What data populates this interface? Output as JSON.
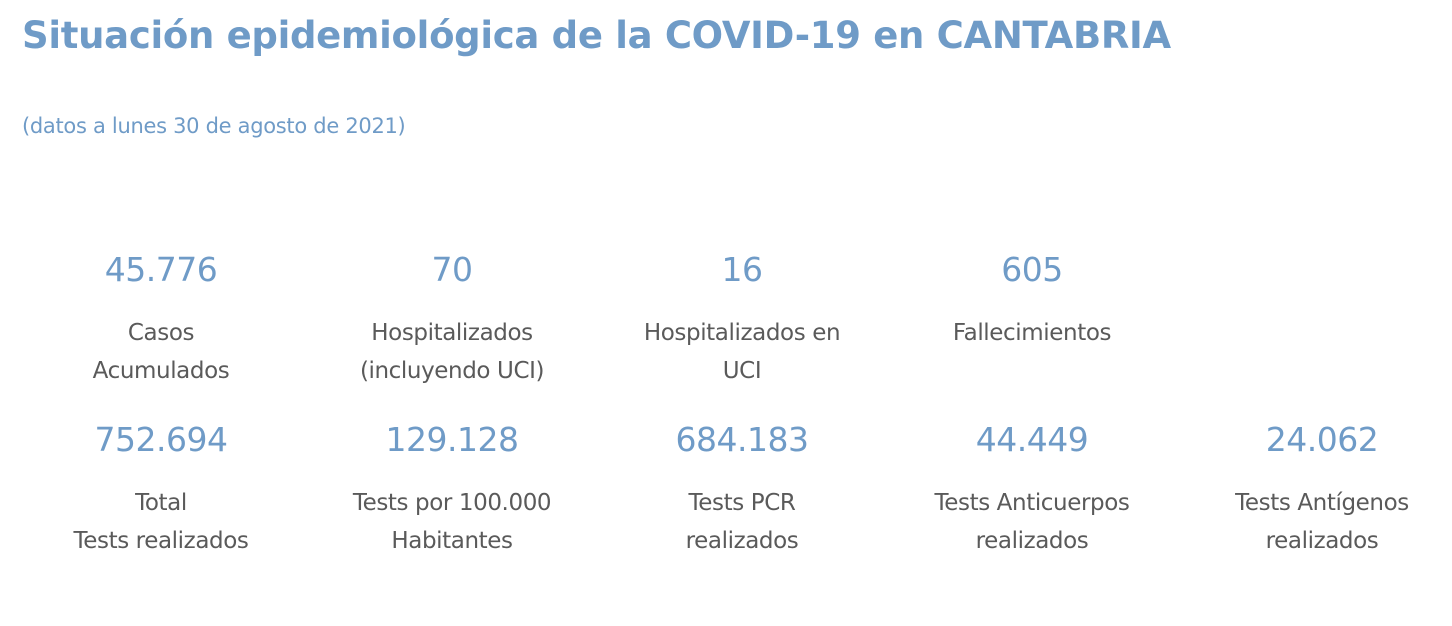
{
  "header": {
    "title": "Situación epidemiológica de la COVID-19 en CANTABRIA",
    "subtitle": "(datos a lunes 30 de agosto de 2021)"
  },
  "stats_row1": [
    {
      "value": "45.776",
      "label_lines": [
        "Casos",
        "Acumulados"
      ]
    },
    {
      "value": "70",
      "label_lines": [
        "Hospitalizados",
        "(incluyendo UCI)"
      ]
    },
    {
      "value": "16",
      "label_lines": [
        "Hospitalizados en",
        "UCI"
      ]
    },
    {
      "value": "605",
      "label_lines": [
        "Fallecimientos"
      ]
    }
  ],
  "stats_row2": [
    {
      "value": "752.694",
      "label_lines": [
        "Total",
        "Tests realizados"
      ]
    },
    {
      "value": "129.128",
      "label_lines": [
        "Tests por 100.000",
        "Habitantes"
      ]
    },
    {
      "value": "684.183",
      "label_lines": [
        "Tests PCR",
        "realizados"
      ]
    },
    {
      "value": "44.449",
      "label_lines": [
        "Tests Anticuerpos",
        "realizados"
      ]
    },
    {
      "value": "24.062",
      "label_lines": [
        "Tests Antígenos",
        "realizados"
      ]
    }
  ],
  "colors": {
    "accent": "#6f9bc7",
    "label_text": "#5a5a5a",
    "background": "#ffffff"
  }
}
